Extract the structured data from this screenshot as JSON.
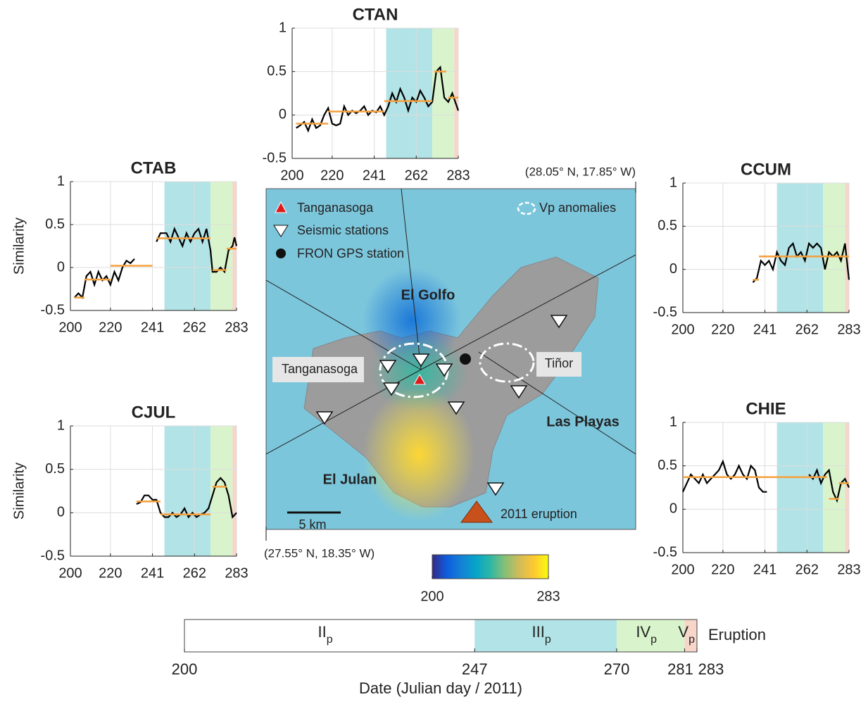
{
  "chart_data": [
    {
      "type": "line",
      "title": "CTAN",
      "line_color": "#000000",
      "segment_color": "#f5a03c",
      "xlim": [
        200,
        283
      ],
      "ylim": [
        -0.5,
        1
      ],
      "xticks": [
        200,
        220,
        241,
        262,
        283
      ],
      "yticks": [
        -0.5,
        0,
        0.5,
        1
      ],
      "grid": true,
      "x": [
        202,
        204,
        206,
        208,
        210,
        212,
        214,
        216,
        218,
        220,
        222,
        224,
        226,
        228,
        230,
        232,
        234,
        236,
        238,
        240,
        242,
        244,
        246,
        248,
        250,
        252,
        254,
        256,
        258,
        260,
        262,
        264,
        266,
        268,
        270,
        272,
        274,
        276,
        278,
        280,
        283
      ],
      "similarity": [
        -0.15,
        -0.12,
        -0.08,
        -0.18,
        -0.05,
        -0.15,
        -0.12,
        0.0,
        0.08,
        -0.1,
        -0.12,
        -0.1,
        0.1,
        0.0,
        0.05,
        0.02,
        0.05,
        0.1,
        0.0,
        0.05,
        0.03,
        0.1,
        0.0,
        0.1,
        0.25,
        0.15,
        0.3,
        0.2,
        0.05,
        0.2,
        0.15,
        0.28,
        0.2,
        0.1,
        0.15,
        0.5,
        0.55,
        0.2,
        0.15,
        0.25,
        0.05
      ],
      "segments": [
        {
          "x": [
            202,
            218
          ],
          "value": -0.1
        },
        {
          "x": [
            218,
            246
          ],
          "value": 0.04
        },
        {
          "x": [
            246,
            270
          ],
          "value": 0.16
        },
        {
          "x": [
            271,
            277
          ],
          "value": 0.5
        },
        {
          "x": [
            278,
            283
          ],
          "value": 0.2
        }
      ]
    },
    {
      "type": "line",
      "title": "CTAB",
      "ylabel": "Similarity",
      "line_color": "#000000",
      "segment_color": "#f5a03c",
      "xlim": [
        200,
        283
      ],
      "ylim": [
        -0.5,
        1
      ],
      "xticks": [
        200,
        220,
        241,
        262,
        283
      ],
      "yticks": [
        -0.5,
        0,
        0.5,
        1
      ],
      "grid": true,
      "x": [
        202,
        204,
        206,
        208,
        210,
        212,
        214,
        216,
        218,
        220,
        222,
        224,
        226,
        228,
        230,
        232,
        237,
        243,
        245,
        248,
        250,
        252,
        254,
        256,
        258,
        260,
        262,
        264,
        266,
        268,
        270,
        271,
        273,
        275,
        277,
        279,
        281,
        282,
        283
      ],
      "similarity": [
        -0.35,
        -0.3,
        -0.35,
        -0.1,
        -0.05,
        -0.2,
        -0.05,
        -0.15,
        -0.1,
        -0.2,
        -0.05,
        -0.15,
        0.0,
        0.08,
        0.05,
        0.1,
        null,
        0.3,
        0.4,
        0.4,
        0.3,
        0.45,
        0.35,
        0.25,
        0.4,
        0.3,
        0.4,
        0.45,
        0.3,
        0.45,
        0.2,
        -0.05,
        -0.05,
        0.0,
        -0.05,
        0.2,
        0.25,
        0.35,
        0.25
      ],
      "segments": [
        {
          "x": [
            202,
            207
          ],
          "value": -0.35
        },
        {
          "x": [
            207,
            220
          ],
          "value": -0.14
        },
        {
          "x": [
            220,
            241
          ],
          "value": 0.02
        },
        {
          "x": [
            243,
            270
          ],
          "value": 0.34
        },
        {
          "x": [
            271,
            278
          ],
          "value": -0.03
        },
        {
          "x": [
            278,
            283
          ],
          "value": 0.22
        }
      ]
    },
    {
      "type": "line",
      "title": "CCUM",
      "line_color": "#000000",
      "segment_color": "#f5a03c",
      "xlim": [
        200,
        283
      ],
      "ylim": [
        -0.5,
        1
      ],
      "xticks": [
        200,
        220,
        241,
        262,
        283
      ],
      "yticks": [
        -0.5,
        0,
        0.5,
        1
      ],
      "grid": true,
      "x": [
        235,
        237,
        239,
        241,
        243,
        245,
        247,
        249,
        251,
        253,
        255,
        257,
        259,
        261,
        263,
        265,
        267,
        269,
        271,
        273,
        275,
        277,
        279,
        281,
        283
      ],
      "similarity": [
        -0.15,
        -0.1,
        0.1,
        0.05,
        0.1,
        0.0,
        0.2,
        0.1,
        0.05,
        0.25,
        0.3,
        0.15,
        0.2,
        0.1,
        0.3,
        0.25,
        0.3,
        0.25,
        0.0,
        0.2,
        0.15,
        0.2,
        0.1,
        0.3,
        -0.12
      ],
      "segments": [
        {
          "x": [
            235,
            238
          ],
          "value": -0.12
        },
        {
          "x": [
            238,
            283
          ],
          "value": 0.15
        }
      ]
    },
    {
      "type": "line",
      "title": "CJUL",
      "ylabel": "Similarity",
      "line_color": "#000000",
      "segment_color": "#f5a03c",
      "xlim": [
        200,
        283
      ],
      "ylim": [
        -0.5,
        1
      ],
      "xticks": [
        200,
        220,
        241,
        262,
        283
      ],
      "yticks": [
        -0.5,
        0,
        0.5,
        1
      ],
      "grid": true,
      "x": [
        233,
        235,
        237,
        239,
        241,
        243,
        245,
        247,
        249,
        251,
        253,
        255,
        257,
        259,
        261,
        263,
        265,
        267,
        269,
        271,
        273,
        275,
        277,
        279,
        281,
        283
      ],
      "similarity": [
        0.1,
        0.12,
        0.2,
        0.2,
        0.15,
        0.15,
        0.0,
        -0.05,
        -0.05,
        0.0,
        -0.05,
        -0.02,
        0.05,
        -0.05,
        0.0,
        -0.05,
        -0.02,
        0.0,
        0.05,
        0.2,
        0.35,
        0.4,
        0.35,
        0.2,
        -0.05,
        0.0
      ],
      "segments": [
        {
          "x": [
            233,
            245
          ],
          "value": 0.13
        },
        {
          "x": [
            245,
            270
          ],
          "value": -0.02
        },
        {
          "x": [
            271,
            278
          ],
          "value": 0.3
        }
      ]
    },
    {
      "type": "line",
      "title": "CHIE",
      "line_color": "#000000",
      "segment_color": "#f5a03c",
      "xlim": [
        200,
        283
      ],
      "ylim": [
        -0.5,
        1
      ],
      "xticks": [
        200,
        220,
        241,
        262,
        283
      ],
      "yticks": [
        -0.5,
        0,
        0.5,
        1
      ],
      "grid": true,
      "x": [
        200,
        202,
        204,
        206,
        208,
        210,
        212,
        214,
        216,
        218,
        220,
        222,
        224,
        226,
        228,
        230,
        232,
        234,
        236,
        238,
        240,
        242,
        250,
        263,
        265,
        267,
        269,
        271,
        273,
        275,
        277,
        279,
        281,
        283
      ],
      "similarity": [
        0.2,
        0.3,
        0.4,
        0.35,
        0.3,
        0.4,
        0.3,
        0.35,
        0.4,
        0.45,
        0.55,
        0.4,
        0.35,
        0.4,
        0.5,
        0.4,
        0.35,
        0.5,
        0.45,
        0.25,
        0.2,
        0.2,
        null,
        0.4,
        0.35,
        0.45,
        0.3,
        0.4,
        0.45,
        0.2,
        0.1,
        0.3,
        0.35,
        0.25
      ],
      "segments": [
        {
          "x": [
            200,
            272
          ],
          "value": 0.37
        },
        {
          "x": [
            273,
            278
          ],
          "value": 0.12
        },
        {
          "x": [
            278,
            283
          ],
          "value": 0.3
        }
      ]
    },
    {
      "type": "colorbar",
      "xlim": [
        200,
        283
      ],
      "xticks": [
        200,
        283
      ],
      "colors": [
        "#352a87",
        "#0f5cdd",
        "#1481d6",
        "#06a4ca",
        "#2eb7a4",
        "#87bf77",
        "#d1bb59",
        "#fec832",
        "#f9fb0e"
      ]
    },
    {
      "type": "timeline",
      "xlim": [
        200,
        283
      ],
      "xticks": [
        200,
        247,
        270,
        281,
        283
      ],
      "xlabel": "Date (Julian day / 2011)",
      "end_label": "Eruption",
      "phases": [
        {
          "label": "II",
          "sub": "p",
          "start": 200,
          "end": 247,
          "color": "#ffffff"
        },
        {
          "label": "III",
          "sub": "p",
          "start": 247,
          "end": 270,
          "color": "#b2e3e6"
        },
        {
          "label": "IV",
          "sub": "p",
          "start": 270,
          "end": 281,
          "color": "#d9f4cc"
        },
        {
          "label": "V",
          "sub": "p",
          "start": 281,
          "end": 283,
          "color": "#f8d5c9"
        }
      ]
    }
  ],
  "map": {
    "corner_ne": "(28.05° N, 17.85° W)",
    "corner_sw": "(27.55° N, 18.35° W)",
    "legend": [
      "Tanganasoga",
      "Seismic stations",
      "FRON GPS station",
      "Vp anomalies"
    ],
    "places": {
      "el_golfo": "El Golfo",
      "tanganasoga": "Tanganasoga",
      "tinor": "Tiñor",
      "las_playas": "Las Playas",
      "el_julan": "El Julan",
      "eruption": "2011 eruption"
    },
    "scale": "5 km"
  }
}
